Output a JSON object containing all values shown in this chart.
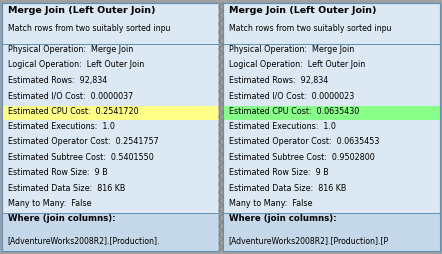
{
  "panels": [
    {
      "title": "Merge Join (Left Outer Join)",
      "subtitle": "Match rows from two suitably sorted inpu",
      "lines": [
        [
          "Physical Operation:  Merge Join",
          null
        ],
        [
          "Logical Operation:  Left Outer Join",
          null
        ],
        [
          "Estimated Rows:  92,834",
          null
        ],
        [
          "Estimated I/O Cost:  0.0000037",
          null
        ],
        [
          "Estimated CPU Cost:  0.2541720",
          "yellow"
        ],
        [
          "Estimated Executions:  1.0",
          null
        ],
        [
          "Estimated Operator Cost:  0.2541757",
          null
        ],
        [
          "Estimated Subtree Cost:  0.5401550",
          null
        ],
        [
          "Estimated Row Size:  9 B",
          null
        ],
        [
          "Estimated Data Size:  816 KB",
          null
        ],
        [
          "Many to Many:  False",
          null
        ]
      ],
      "footer_title": "Where (join columns):",
      "footer_text": "[AdventureWorks2008R2].[Production]."
    },
    {
      "title": "Merge Join (Left Outer Join)",
      "subtitle": "Match rows from two suitably sorted inpu",
      "lines": [
        [
          "Physical Operation:  Merge Join",
          null
        ],
        [
          "Logical Operation:  Left Outer Join",
          null
        ],
        [
          "Estimated Rows:  92,834",
          null
        ],
        [
          "Estimated I/O Cost:  0.0000023",
          null
        ],
        [
          "Estimated CPU Cost:  0.0635430",
          "green"
        ],
        [
          "Estimated Executions:  1.0",
          null
        ],
        [
          "Estimated Operator Cost:  0.0635453",
          null
        ],
        [
          "Estimated Subtree Cost:  0.9502800",
          null
        ],
        [
          "Estimated Row Size:  9 B",
          null
        ],
        [
          "Estimated Data Size:  816 KB",
          null
        ],
        [
          "Many to Many:  False",
          null
        ]
      ],
      "footer_title": "Where (join columns):",
      "footer_text": "[AdventureWorks2008R2].[Production].[P"
    }
  ],
  "fig_bg": "#a0a0a0",
  "panel_bg": "#dce8f4",
  "footer_bg": "#c5d8ea",
  "border_color": "#6090b8",
  "highlight_yellow": "#ffff88",
  "highlight_green": "#88ff88",
  "title_fs": 6.8,
  "subtitle_fs": 5.6,
  "body_fs": 5.8,
  "footer_title_fs": 6.2,
  "footer_text_fs": 5.6
}
